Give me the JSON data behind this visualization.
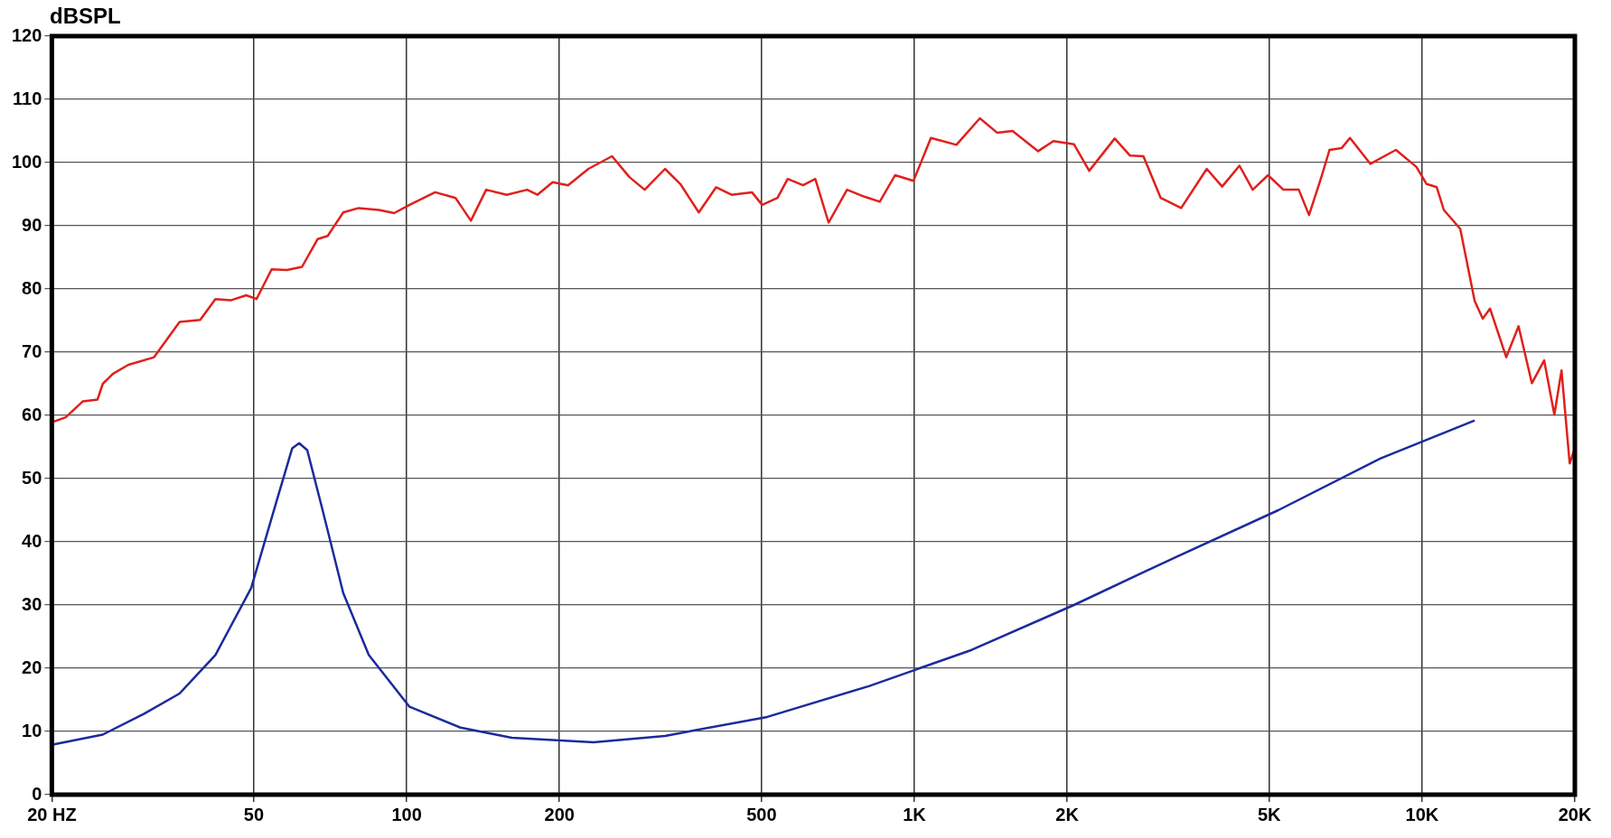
{
  "chart_data": {
    "type": "line",
    "ylabel": "dBSPL",
    "log": "x",
    "grid": true,
    "legend": false,
    "marker": "none",
    "line_style": "solid",
    "xlim": [
      20,
      20000
    ],
    "xticks": [
      {
        "value": 20,
        "label": "20 HZ"
      },
      50,
      100,
      200,
      500,
      {
        "value": 1000,
        "label": "1K"
      },
      {
        "value": 2000,
        "label": "2K"
      },
      {
        "value": 5000,
        "label": "5K"
      },
      {
        "value": 10000,
        "label": "10K"
      },
      {
        "value": 20000,
        "label": "20K"
      }
    ],
    "ylim": [
      0,
      120
    ],
    "yticks": [
      0,
      10,
      20,
      30,
      40,
      50,
      60,
      70,
      80,
      90,
      100,
      110,
      120
    ],
    "series": [
      {
        "color": "#e0201c",
        "x": [
          20,
          21.3,
          23,
          24.6,
          25.2,
          26.4,
          28.3,
          31.8,
          35.7,
          39.2,
          42,
          45,
          48.3,
          50.6,
          54.2,
          58.1,
          62.2,
          66.8,
          69.9,
          75,
          80.4,
          88.2,
          94.5,
          101.3,
          113.8,
          124.8,
          133.8,
          143.4,
          157.4,
          172.7,
          180.9,
          193.9,
          207.9,
          228,
          253.8,
          274.6,
          294.3,
          322.8,
          346,
          376.2,
          407,
          436.4,
          478.7,
          501.4,
          537.5,
          563,
          603.6,
          638.1,
          677.8,
          736.8,
          797.4,
          854.8,
          916.3,
          996,
          1078,
          1210,
          1346,
          1457,
          1561,
          1753,
          1879,
          2062,
          2210,
          2481,
          2660,
          2826,
          3057,
          3354,
          3767,
          4039,
          4369,
          4640,
          4974,
          5333,
          5718,
          5990,
          6334,
          6573,
          6949,
          7212,
          7913,
          8884,
          9749,
          10210,
          10690,
          11040,
          11894,
          12696,
          13174,
          13610,
          14653,
          15493,
          16457,
          17400,
          18224,
          18826,
          19536,
          20000
        ],
        "values": [
          58.9,
          59.7,
          62.2,
          62.5,
          65,
          66.6,
          68,
          69.2,
          74.8,
          75.1,
          78.4,
          78.2,
          79,
          78.4,
          83.1,
          83,
          83.5,
          87.9,
          88.4,
          92.1,
          92.8,
          92.5,
          92,
          93.3,
          95.3,
          94.4,
          90.8,
          95.7,
          94.9,
          95.7,
          94.9,
          96.9,
          96.4,
          99,
          101,
          97.7,
          95.7,
          99,
          96.6,
          92.1,
          96.1,
          94.9,
          95.3,
          93.3,
          94.4,
          97.4,
          96.4,
          97.4,
          90.5,
          95.7,
          94.6,
          93.8,
          98,
          97.1,
          103.9,
          102.8,
          107,
          104.7,
          105,
          101.8,
          103.4,
          102.9,
          98.7,
          103.8,
          101.1,
          101,
          94.4,
          92.8,
          99,
          96.2,
          99.5,
          95.7,
          98,
          95.7,
          95.7,
          91.7,
          97.7,
          102,
          102.3,
          103.9,
          99.8,
          102,
          99.3,
          96.6,
          96.1,
          92.5,
          89.5,
          78.1,
          75.3,
          76.9,
          69.2,
          74.1,
          65.1,
          68.7,
          60.1,
          67.1,
          52.4,
          54.8
        ]
      },
      {
        "color": "#1c2a9c",
        "x": [
          20,
          25.2,
          30.4,
          35.7,
          42,
          49.4,
          55.5,
          59.5,
          61.4,
          63.7,
          68.3,
          75,
          84.2,
          101.3,
          127.7,
          161.1,
          233.4,
          322.8,
          513.3,
          815.9,
          1297,
          2062,
          3277,
          5210,
          8287,
          12696
        ],
        "values": [
          7.9,
          9.5,
          12.8,
          16,
          22.1,
          32.7,
          46.6,
          54.8,
          55.6,
          54.5,
          45,
          31.9,
          22.1,
          13.9,
          10.6,
          9,
          8.3,
          9.3,
          12.3,
          17.2,
          22.9,
          30,
          37.6,
          45,
          53.2,
          59.2
        ]
      }
    ]
  }
}
